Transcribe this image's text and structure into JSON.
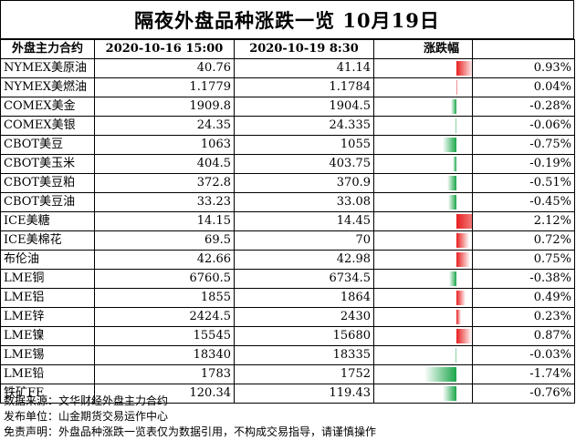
{
  "title": "隔夜外盘品种涨跌一览  10月19日",
  "headers": {
    "name": "外盘主力合约",
    "prev": "2020-10-16 15:00",
    "curr": "2020-10-19 8:30",
    "bar": "涨跌幅",
    "pct": ""
  },
  "colors": {
    "up": "#e81e1e",
    "down": "#1aa64a"
  },
  "rows": [
    {
      "name": "NYMEX美原油",
      "prev": "40.76",
      "curr": "41.14",
      "change": 0.93,
      "pct": "0.93%"
    },
    {
      "name": "NYMEX美燃油",
      "prev": "1.1779",
      "curr": "1.1784",
      "change": 0.04,
      "pct": "0.04%"
    },
    {
      "name": "COMEX美金",
      "prev": "1909.8",
      "curr": "1904.5",
      "change": -0.28,
      "pct": "-0.28%"
    },
    {
      "name": "COMEX美银",
      "prev": "24.35",
      "curr": "24.335",
      "change": -0.06,
      "pct": "-0.06%"
    },
    {
      "name": "CBOT美豆",
      "prev": "1063",
      "curr": "1055",
      "change": -0.75,
      "pct": "-0.75%"
    },
    {
      "name": "CBOT美玉米",
      "prev": "404.5",
      "curr": "403.75",
      "change": -0.19,
      "pct": "-0.19%"
    },
    {
      "name": "CBOT美豆粕",
      "prev": "372.8",
      "curr": "370.9",
      "change": -0.51,
      "pct": "-0.51%"
    },
    {
      "name": "CBOT美豆油",
      "prev": "33.23",
      "curr": "33.08",
      "change": -0.45,
      "pct": "-0.45%"
    },
    {
      "name": "ICE美糖",
      "prev": "14.15",
      "curr": "14.45",
      "change": 2.12,
      "pct": "2.12%"
    },
    {
      "name": "ICE美棉花",
      "prev": "69.5",
      "curr": "70",
      "change": 0.72,
      "pct": "0.72%"
    },
    {
      "name": "布伦油",
      "prev": "42.66",
      "curr": "42.98",
      "change": 0.75,
      "pct": "0.75%"
    },
    {
      "name": "LME铜",
      "prev": "6760.5",
      "curr": "6734.5",
      "change": -0.38,
      "pct": "-0.38%"
    },
    {
      "name": "LME铝",
      "prev": "1855",
      "curr": "1864",
      "change": 0.49,
      "pct": "0.49%"
    },
    {
      "name": "LME锌",
      "prev": "2424.5",
      "curr": "2430",
      "change": 0.23,
      "pct": "0.23%"
    },
    {
      "name": "LME镍",
      "prev": "15545",
      "curr": "15680",
      "change": 0.87,
      "pct": "0.87%"
    },
    {
      "name": "LME锡",
      "prev": "18340",
      "curr": "18335",
      "change": -0.03,
      "pct": "-0.03%"
    },
    {
      "name": "LME铅",
      "prev": "1783",
      "curr": "1752",
      "change": -1.74,
      "pct": "-1.74%"
    },
    {
      "name": "铁矿FE",
      "prev": "120.34",
      "curr": "119.43",
      "change": -0.76,
      "pct": "-0.76%"
    }
  ],
  "footer": [
    "数据来源：文华财经外盘主力合约",
    "发布单位：山金期货交易运作中心",
    "免责声明：外盘品种涨跌一览表仅为数据引用，不构成交易指导，请谨慎操作"
  ]
}
